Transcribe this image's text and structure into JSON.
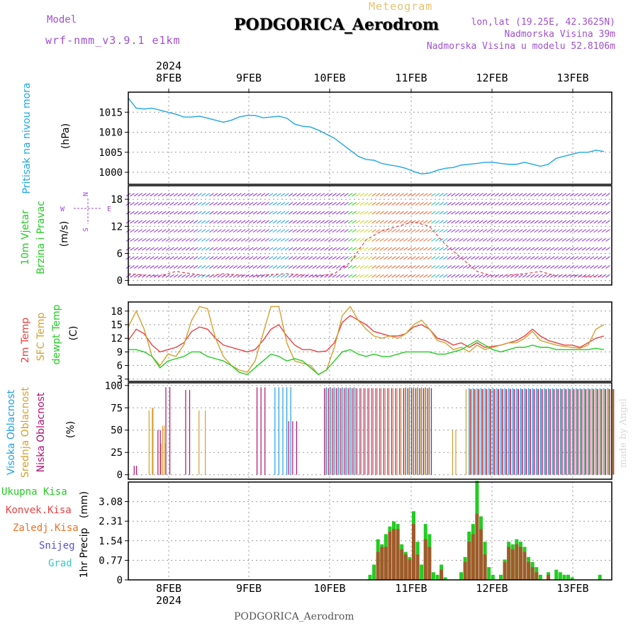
{
  "header": {
    "model_label": "Model",
    "model_name": "wrf-nmm_v3.9.1 e1km",
    "meteogram_label": "Meteogram",
    "title": "PODGORICA_Aerodrom",
    "coords": "lon,lat (19.25E, 42.3625N)",
    "elevation": "Nadmorska Visina 39m",
    "model_elevation": "Nadmorska Visina u modelu 52.8106m"
  },
  "footer": {
    "title": "PODGORICA_Aerodrom",
    "watermark": "made by Angel"
  },
  "colors": {
    "pressure": "#1fa6e8",
    "temp2m": "#e84040",
    "sfc": "#d4a030",
    "dewpt": "#22cc22",
    "high_cloud": "#1fa0e8",
    "mid_cloud": "#d4a030",
    "low_cloud": "#b01070",
    "total_precip": "#22cc22",
    "conv_precip": "#a05a2a",
    "label_purple": "#a050d0"
  },
  "chart_data": [
    {
      "type": "line",
      "id": "pressure",
      "ylabel": [
        "Pritisak na nivou mora",
        "(hPa)"
      ],
      "ylim": [
        997,
        1020
      ],
      "yticks": [
        1000,
        1005,
        1010,
        1015
      ],
      "x": [
        0,
        1,
        2,
        3,
        4,
        5,
        6,
        7,
        8,
        9,
        10,
        11,
        12,
        13,
        14,
        15,
        16,
        17,
        18,
        19,
        20,
        21,
        22,
        23,
        24,
        25,
        26,
        27,
        28,
        29,
        30,
        31,
        32,
        33,
        34,
        35,
        36,
        37,
        38,
        39,
        40,
        41,
        42,
        43,
        44,
        45,
        46,
        47,
        48,
        49,
        50,
        51,
        52,
        53,
        54,
        55,
        56,
        57,
        58,
        59,
        60
      ],
      "series": [
        {
          "values": [
            1018.5,
            1016.0,
            1015.8,
            1016.0,
            1015.5,
            1015.0,
            1014.5,
            1013.8,
            1013.8,
            1014.0,
            1013.5,
            1013.0,
            1012.5,
            1013.0,
            1013.8,
            1014.2,
            1014.2,
            1013.6,
            1013.8,
            1014.0,
            1013.5,
            1012.0,
            1011.5,
            1011.3,
            1010.5,
            1009.5,
            1008.5,
            1007.0,
            1005.5,
            1004.0,
            1003.2,
            1003.0,
            1002.2,
            1001.8,
            1001.5,
            1001.0,
            1000.2,
            999.6,
            999.8,
            1000.5,
            1001.0,
            1001.2,
            1001.8,
            1002.0,
            1002.2,
            1002.5,
            1002.5,
            1002.2,
            1002.0,
            1002.0,
            1002.5,
            1002.0,
            1001.5,
            1002.0,
            1003.5,
            1004.0,
            1004.5,
            1005.0,
            1005.0,
            1005.5,
            1005.2
          ]
        }
      ],
      "xtick_labels": [
        "8FEB",
        "9FEB",
        "10FEB",
        "11FEB",
        "12FEB",
        "13FEB"
      ],
      "year_label": "2024"
    },
    {
      "type": "barbs",
      "id": "wind",
      "ylabel": [
        "10m Vjetar",
        "Brzina i Pravac",
        "(m/s)"
      ],
      "compass_labels": [
        "N",
        "W",
        "E",
        "S"
      ],
      "ylim": [
        -1,
        21
      ],
      "yticks": [
        0,
        6,
        12,
        18
      ],
      "x": [
        0,
        2,
        4,
        6,
        8,
        10,
        12,
        14,
        16,
        18,
        20,
        22,
        24,
        26,
        28,
        30,
        32,
        34,
        36,
        38,
        40,
        42,
        44,
        46,
        48,
        50,
        52,
        54,
        56,
        58,
        60
      ],
      "speed": [
        1.5,
        1.2,
        1.0,
        2.0,
        1.5,
        1.0,
        1.5,
        1.2,
        1.0,
        1.3,
        1.5,
        1.2,
        1.0,
        1.5,
        4.0,
        9.0,
        11.0,
        12.0,
        13.0,
        12.0,
        8.0,
        5.0,
        2.0,
        1.0,
        1.2,
        1.5,
        2.0,
        1.0,
        1.2,
        0.8,
        1.0
      ]
    },
    {
      "type": "line",
      "id": "temperature",
      "ylabel": [
        "2m Temp",
        "SFC Temp",
        "dewpt Temp",
        "(C)"
      ],
      "ylim": [
        2.5,
        20
      ],
      "yticks": [
        3,
        6,
        9,
        12,
        15,
        18
      ],
      "x": [
        0,
        1,
        2,
        3,
        4,
        5,
        6,
        7,
        8,
        9,
        10,
        11,
        12,
        13,
        14,
        15,
        16,
        17,
        18,
        19,
        20,
        21,
        22,
        23,
        24,
        25,
        26,
        27,
        28,
        29,
        30,
        31,
        32,
        33,
        34,
        35,
        36,
        37,
        38,
        39,
        40,
        41,
        42,
        43,
        44,
        45,
        46,
        47,
        48,
        49,
        50,
        51,
        52,
        53,
        54,
        55,
        56,
        57,
        58,
        59,
        60
      ],
      "series": [
        {
          "name": "2m Temp",
          "values": [
            11.5,
            14.0,
            13.0,
            10.5,
            9.0,
            9.5,
            10.0,
            11.0,
            13.5,
            14.5,
            14.0,
            12.0,
            10.5,
            10.0,
            9.5,
            9.0,
            9.5,
            11.5,
            14.0,
            15.0,
            12.5,
            10.5,
            9.5,
            9.5,
            9.0,
            9.2,
            11.0,
            15.5,
            17.0,
            16.0,
            15.0,
            13.5,
            13.0,
            12.5,
            12.5,
            13.0,
            14.5,
            15.0,
            14.0,
            12.0,
            11.5,
            10.5,
            11.0,
            10.0,
            11.0,
            10.0,
            10.2,
            10.5,
            11.0,
            11.5,
            12.5,
            14.0,
            12.5,
            11.5,
            11.0,
            10.5,
            10.5,
            10.0,
            11.0,
            12.0,
            12.5
          ]
        },
        {
          "name": "SFC Temp",
          "values": [
            14.5,
            18.0,
            14.0,
            8.0,
            6.0,
            8.5,
            8.0,
            10.5,
            16.0,
            19.0,
            18.5,
            12.0,
            8.0,
            6.0,
            5.0,
            4.5,
            7.0,
            13.0,
            19.0,
            19.0,
            11.0,
            7.0,
            6.5,
            6.0,
            4.0,
            5.0,
            10.0,
            17.0,
            19.0,
            16.0,
            14.0,
            12.5,
            12.0,
            12.5,
            12.0,
            13.0,
            15.0,
            16.0,
            14.0,
            11.5,
            11.0,
            9.5,
            10.0,
            9.0,
            10.5,
            9.5,
            10.0,
            10.5,
            11.0,
            11.0,
            12.0,
            13.5,
            11.5,
            11.0,
            10.5,
            10.2,
            10.0,
            9.8,
            10.5,
            14.0,
            15.0
          ]
        },
        {
          "name": "dewpt Temp",
          "values": [
            9.5,
            9.5,
            9.0,
            8.0,
            5.5,
            7.0,
            7.5,
            8.0,
            9.0,
            9.0,
            8.0,
            7.5,
            7.0,
            6.0,
            4.5,
            4.0,
            5.5,
            7.0,
            8.5,
            8.0,
            7.0,
            7.5,
            7.0,
            5.5,
            4.0,
            5.0,
            7.0,
            9.0,
            9.5,
            8.5,
            8.0,
            8.5,
            8.0,
            8.0,
            8.5,
            9.0,
            9.0,
            9.0,
            9.0,
            8.5,
            8.5,
            9.0,
            9.5,
            10.5,
            11.5,
            10.5,
            9.5,
            9.0,
            9.5,
            10.0,
            10.0,
            10.5,
            10.0,
            10.0,
            9.5,
            9.5,
            9.5,
            9.5,
            9.5,
            9.8,
            9.5
          ]
        }
      ]
    },
    {
      "type": "bar",
      "id": "cloud",
      "ylabel": [
        "Visoka Oblacnost",
        "Srednja Oblacnost",
        "Niska Oblacnost",
        "(%)"
      ],
      "ylim": [
        -5,
        103
      ],
      "yticks": [
        0,
        25,
        50,
        75,
        100
      ],
      "series": [
        {
          "name": "Visoka Oblacnost",
          "segments": [
            [
              18.5,
              20.5,
              98
            ],
            [
              25,
              28.5,
              98
            ],
            [
              35,
              38,
              98
            ],
            [
              43,
              61,
              97
            ]
          ]
        },
        {
          "name": "Srednja Oblacnost",
          "segments": [
            [
              2.5,
              3.0,
              72
            ],
            [
              2.9,
              3.0,
              75
            ],
            [
              4.0,
              4.6,
              35
            ],
            [
              4.2,
              4.4,
              55
            ],
            [
              8.8,
              9.6,
              72
            ],
            [
              24.8,
              38,
              97
            ],
            [
              40.8,
              41.2,
              50
            ],
            [
              42.5,
              61,
              96
            ]
          ]
        },
        {
          "name": "Niska Oblacnost",
          "segments": [
            [
              0.5,
              0.8,
              10
            ],
            [
              3.5,
              3.8,
              50
            ],
            [
              4.5,
              5.0,
              98
            ],
            [
              7.0,
              7.5,
              95
            ],
            [
              16.0,
              17.2,
              98
            ],
            [
              20.0,
              21.0,
              60
            ],
            [
              24.5,
              38,
              97
            ],
            [
              43,
              61,
              96
            ]
          ]
        }
      ]
    },
    {
      "type": "bar",
      "id": "precip",
      "ylabel": [
        "1hr Precip",
        "(mm)"
      ],
      "ylim": [
        0,
        3.85
      ],
      "yticks": [
        0,
        0.77,
        1.54,
        2.31,
        3.08
      ],
      "ytick_labels": [
        "0",
        "0.77",
        "1.54",
        "2.31",
        "3.08"
      ],
      "legend": [
        "Ukupna Kisa",
        "Konvek.Kisa",
        "Zaledj.Kisa",
        "Snijeg",
        "Grad"
      ],
      "series": [
        {
          "name": "Ukupna Kisa",
          "x": [
            30.5,
            31.0,
            31.5,
            32.0,
            32.5,
            33.0,
            33.5,
            34.0,
            34.5,
            35.0,
            35.5,
            36.0,
            36.5,
            37.0,
            37.5,
            38.0,
            38.5,
            39.0,
            39.5,
            40.0,
            42.0,
            42.5,
            43.0,
            43.5,
            44.0,
            44.5,
            45.0,
            45.5,
            46.0,
            47.0,
            47.5,
            48.0,
            48.5,
            49.0,
            49.5,
            50.0,
            50.5,
            51.0,
            51.5,
            52.0,
            53.0,
            54.0,
            54.5,
            55.0,
            55.5,
            56.0,
            59.5
          ],
          "values": [
            0.2,
            0.6,
            1.6,
            1.4,
            1.8,
            2.1,
            2.3,
            2.2,
            1.4,
            1.1,
            0.9,
            2.7,
            1.5,
            0.6,
            2.2,
            1.8,
            0.3,
            0.2,
            0.6,
            0.1,
            0.3,
            0.9,
            1.9,
            2.2,
            3.9,
            2.5,
            1.5,
            0.5,
            0.2,
            0.2,
            0.8,
            1.5,
            1.4,
            1.6,
            1.5,
            1.3,
            0.9,
            0.7,
            0.5,
            0.2,
            0.3,
            0.4,
            0.3,
            0.2,
            0.2,
            0.1,
            0.2
          ]
        },
        {
          "name": "Konvek.Kisa",
          "x": [
            31.5,
            32.0,
            32.5,
            33.0,
            33.5,
            34.0,
            34.5,
            35.0,
            35.5,
            36.0,
            36.5,
            37.5,
            38.0,
            39.5,
            42.5,
            43.0,
            43.5,
            44.0,
            44.5,
            45.0,
            47.5,
            48.0,
            48.5,
            49.0,
            49.5,
            50.0,
            50.5,
            51.0,
            51.5,
            53.0
          ],
          "values": [
            1.1,
            1.3,
            1.3,
            1.9,
            2.0,
            2.0,
            1.2,
            1.0,
            0.8,
            2.2,
            1.0,
            1.6,
            1.3,
            0.4,
            0.7,
            1.5,
            1.8,
            2.6,
            2.0,
            1.0,
            0.7,
            1.3,
            1.2,
            1.4,
            1.3,
            1.1,
            0.7,
            0.5,
            0.3,
            0.2
          ]
        }
      ]
    }
  ]
}
